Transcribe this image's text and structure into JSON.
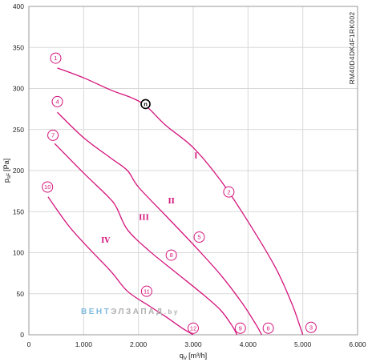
{
  "chart_data": {
    "type": "line",
    "xlabel_main": "q",
    "xlabel_sub": "V",
    "xlabel_unit": "[m³/h]",
    "ylabel_main": "p",
    "ylabel_sub": "sF",
    "ylabel_unit": "[Pa]",
    "xlim": [
      0,
      6000
    ],
    "ylim": [
      0,
      400
    ],
    "x_ticks": [
      0,
      1000,
      2000,
      3000,
      4000,
      5000,
      6000
    ],
    "x_tick_labels": [
      "0",
      "1.000",
      "2.000",
      "3.000",
      "4.000",
      "5.000",
      "6.000"
    ],
    "y_ticks": [
      0,
      50,
      100,
      150,
      200,
      250,
      300,
      350,
      400
    ],
    "y_tick_labels": [
      "0",
      "50",
      "100",
      "150",
      "200",
      "250",
      "300",
      "350",
      "400"
    ],
    "grid": true,
    "line_color": "#d4147c",
    "side_code": "RM40D4DK4F1RK002",
    "series": [
      {
        "name": "I",
        "label_at": [
          3050,
          215
        ],
        "points": [
          [
            520,
            325
          ],
          [
            1000,
            313
          ],
          [
            1500,
            298
          ],
          [
            1900,
            288
          ],
          [
            2150,
            278
          ],
          [
            2500,
            255
          ],
          [
            3000,
            228
          ],
          [
            3500,
            188
          ],
          [
            4000,
            138
          ],
          [
            4500,
            82
          ],
          [
            4800,
            38
          ],
          [
            4950,
            10
          ],
          [
            5000,
            0
          ]
        ]
      },
      {
        "name": "II",
        "label_at": [
          2600,
          160
        ],
        "points": [
          [
            520,
            271
          ],
          [
            1000,
            240
          ],
          [
            1500,
            215
          ],
          [
            1800,
            200
          ],
          [
            2000,
            180
          ],
          [
            2500,
            145
          ],
          [
            3000,
            110
          ],
          [
            3500,
            73
          ],
          [
            3900,
            38
          ],
          [
            4150,
            12
          ],
          [
            4250,
            0
          ]
        ]
      },
      {
        "name": "III",
        "label_at": [
          2100,
          140
        ],
        "points": [
          [
            470,
            233
          ],
          [
            1000,
            197
          ],
          [
            1450,
            168
          ],
          [
            1600,
            155
          ],
          [
            1800,
            128
          ],
          [
            2200,
            102
          ],
          [
            2700,
            75
          ],
          [
            3200,
            48
          ],
          [
            3500,
            30
          ],
          [
            3700,
            12
          ],
          [
            3800,
            0
          ]
        ]
      },
      {
        "name": "IV",
        "label_at": [
          1400,
          112
        ],
        "points": [
          [
            350,
            168
          ],
          [
            700,
            135
          ],
          [
            1000,
            112
          ],
          [
            1500,
            77
          ],
          [
            1800,
            53
          ],
          [
            2200,
            35
          ],
          [
            2500,
            22
          ],
          [
            2800,
            8
          ],
          [
            3000,
            0
          ]
        ]
      }
    ],
    "markers": [
      {
        "label": "1",
        "at": [
          490,
          337
        ]
      },
      {
        "label": "4",
        "at": [
          520,
          284
        ]
      },
      {
        "label": "7",
        "at": [
          440,
          243
        ]
      },
      {
        "label": "10",
        "at": [
          340,
          180
        ]
      },
      {
        "label": "n",
        "at": [
          2130,
          281
        ],
        "style": "operating-point"
      },
      {
        "label": "2",
        "at": [
          3650,
          174
        ]
      },
      {
        "label": "5",
        "at": [
          3110,
          119
        ]
      },
      {
        "label": "8",
        "at": [
          2600,
          97
        ]
      },
      {
        "label": "11",
        "at": [
          2150,
          53
        ]
      },
      {
        "label": "12",
        "at": [
          3000,
          8
        ]
      },
      {
        "label": "9",
        "at": [
          3860,
          8
        ]
      },
      {
        "label": "6",
        "at": [
          4370,
          8
        ]
      },
      {
        "label": "3",
        "at": [
          5150,
          9
        ]
      }
    ]
  },
  "watermark": {
    "part1": "ВЕНТ",
    "part2": "ЭЛ",
    "part3": "ЗАПАД",
    "part4": ".by",
    "color1": "#7fb9de",
    "color2": "#b0b0b0"
  }
}
